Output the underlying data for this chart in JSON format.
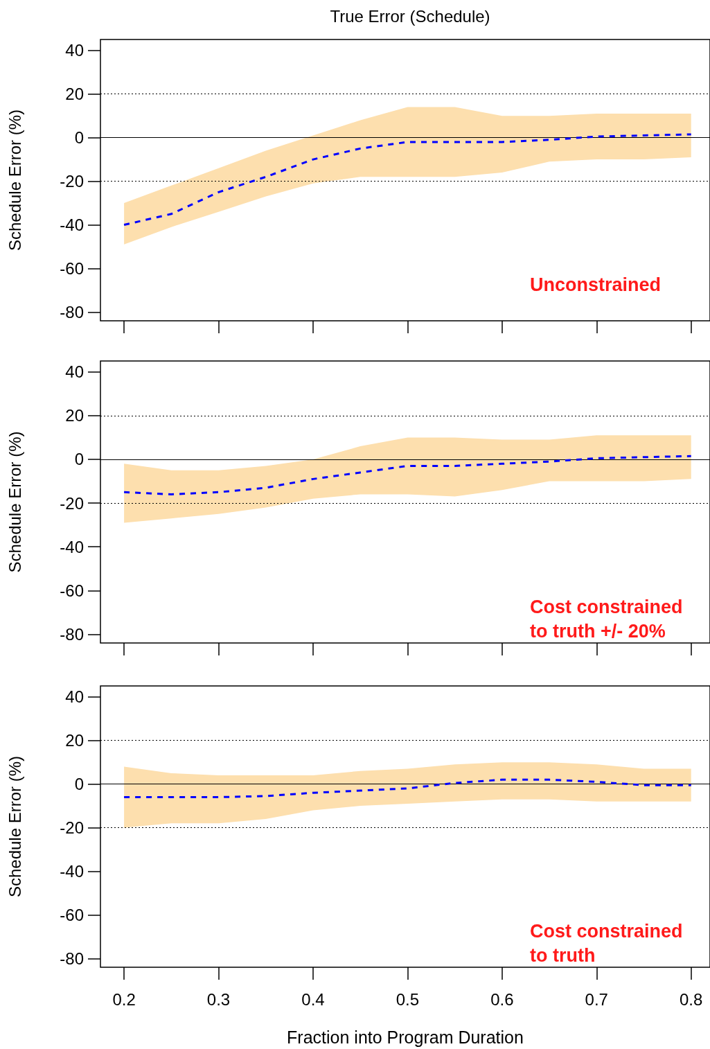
{
  "chart_data": [
    {
      "type": "line",
      "title": "True Error (Schedule)",
      "ylabel": "Schedule Error (%)",
      "annotations": [
        "Unconstrained"
      ],
      "x": [
        0.2,
        0.25,
        0.3,
        0.35,
        0.4,
        0.45,
        0.5,
        0.55,
        0.6,
        0.65,
        0.7,
        0.75,
        0.8
      ],
      "series": [
        {
          "color": "#0000ff",
          "values": [
            -40,
            -35,
            -25,
            -18,
            -10,
            -5,
            -2,
            -2,
            -2,
            -1,
            0.5,
            1,
            1.5
          ],
          "lower": [
            -49,
            -41,
            -34,
            -27,
            -21,
            -18,
            -18,
            -18,
            -16,
            -11,
            -10,
            -10,
            -9
          ],
          "upper": [
            -30,
            -22,
            -14,
            -6,
            1,
            8,
            14,
            14,
            10,
            10,
            11,
            11,
            11
          ]
        }
      ],
      "xlim": [
        0.175,
        0.82
      ],
      "xticks": [
        {
          "value": 0.2,
          "label": null
        },
        {
          "value": 0.3,
          "label": null
        },
        {
          "value": 0.4,
          "label": null
        },
        {
          "value": 0.5,
          "label": null
        },
        {
          "value": 0.6,
          "label": null
        },
        {
          "value": 0.7,
          "label": null
        },
        {
          "value": 0.8,
          "label": null
        }
      ],
      "ylim": [
        -84,
        45
      ],
      "yticks": [
        -80,
        -60,
        -40,
        -20,
        0,
        20,
        40
      ],
      "tick_labels": "y",
      "grid": false,
      "marker": "none",
      "line_style": "dashed",
      "ref_lines": [
        {
          "axis": "y",
          "value": 20,
          "line_style": "dotted",
          "color": "#000000"
        },
        {
          "axis": "y",
          "value": 0,
          "line_style": "solid",
          "color": "#000000"
        },
        {
          "axis": "y",
          "value": -20,
          "line_style": "dotted",
          "color": "#000000"
        }
      ]
    },
    {
      "type": "line",
      "ylabel": "Schedule Error (%)",
      "annotations": [
        "Cost constrained\nto truth +/- 20%"
      ],
      "x": [
        0.2,
        0.25,
        0.3,
        0.35,
        0.4,
        0.45,
        0.5,
        0.55,
        0.6,
        0.65,
        0.7,
        0.75,
        0.8
      ],
      "series": [
        {
          "color": "#0000ff",
          "values": [
            -15,
            -16,
            -15,
            -13,
            -9,
            -6,
            -3,
            -3,
            -2,
            -1,
            0.5,
            1,
            1.5
          ],
          "lower": [
            -29,
            -27,
            -25,
            -22,
            -18,
            -16,
            -16,
            -17,
            -14,
            -10,
            -10,
            -10,
            -9
          ],
          "upper": [
            -2,
            -5,
            -5,
            -3,
            0,
            6,
            10,
            10,
            9,
            9,
            11,
            11,
            11
          ]
        }
      ],
      "xlim": [
        0.175,
        0.82
      ],
      "xticks": [
        {
          "value": 0.2,
          "label": null
        },
        {
          "value": 0.3,
          "label": null
        },
        {
          "value": 0.4,
          "label": null
        },
        {
          "value": 0.5,
          "label": null
        },
        {
          "value": 0.6,
          "label": null
        },
        {
          "value": 0.7,
          "label": null
        },
        {
          "value": 0.8,
          "label": null
        }
      ],
      "ylim": [
        -84,
        45
      ],
      "yticks": [
        -80,
        -60,
        -40,
        -20,
        0,
        20,
        40
      ],
      "tick_labels": "y",
      "grid": false,
      "marker": "none",
      "line_style": "dashed",
      "ref_lines": [
        {
          "axis": "y",
          "value": 20,
          "line_style": "dotted",
          "color": "#000000"
        },
        {
          "axis": "y",
          "value": 0,
          "line_style": "solid",
          "color": "#000000"
        },
        {
          "axis": "y",
          "value": -20,
          "line_style": "dotted",
          "color": "#000000"
        }
      ]
    },
    {
      "type": "line",
      "xlabel": "Fraction into Program Duration",
      "ylabel": "Schedule Error (%)",
      "annotations": [
        "Cost constrained\nto truth"
      ],
      "x": [
        0.2,
        0.25,
        0.3,
        0.35,
        0.4,
        0.45,
        0.5,
        0.55,
        0.6,
        0.65,
        0.7,
        0.75,
        0.8
      ],
      "series": [
        {
          "color": "#0000ff",
          "values": [
            -6,
            -6,
            -6,
            -5.5,
            -4,
            -3,
            -2,
            0.5,
            2,
            2,
            1,
            -0.5,
            -0.5
          ],
          "lower": [
            -20,
            -18,
            -18,
            -16,
            -12,
            -10,
            -9,
            -8,
            -7,
            -7,
            -8,
            -8,
            -8
          ],
          "upper": [
            8,
            5,
            4,
            4,
            4,
            6,
            7,
            9,
            10,
            10,
            9,
            7,
            7
          ]
        }
      ],
      "xlim": [
        0.175,
        0.82
      ],
      "xticks": [
        0.2,
        0.3,
        0.4,
        0.5,
        0.6,
        0.7,
        0.8
      ],
      "ylim": [
        -84,
        45
      ],
      "yticks": [
        -80,
        -60,
        -40,
        -20,
        0,
        20,
        40
      ],
      "grid": false,
      "marker": "none",
      "line_style": "dashed",
      "ref_lines": [
        {
          "axis": "y",
          "value": 20,
          "line_style": "dotted",
          "color": "#000000"
        },
        {
          "axis": "y",
          "value": 0,
          "line_style": "solid",
          "color": "#000000"
        },
        {
          "axis": "y",
          "value": -20,
          "line_style": "dotted",
          "color": "#000000"
        }
      ]
    }
  ]
}
